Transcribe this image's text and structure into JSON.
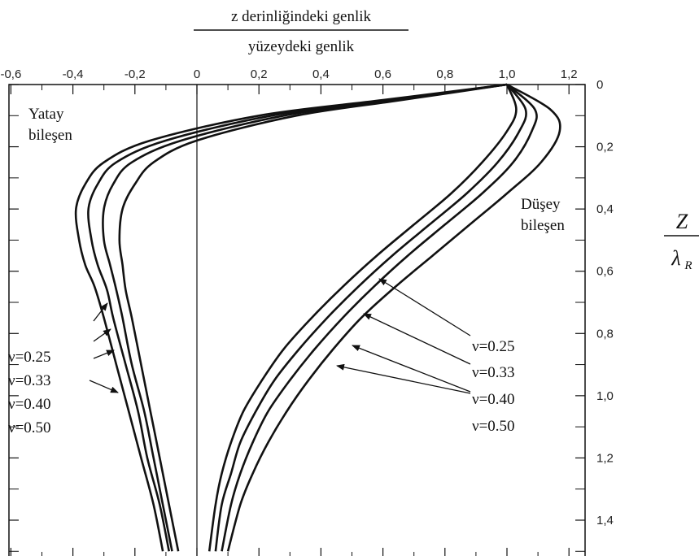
{
  "chart_data": {
    "type": "line",
    "title_numerator": "z derinliğindeki genlik",
    "title_denominator": "yüzeydeki genlik",
    "ylabel_numerator": "Z",
    "ylabel_denominator": "λ",
    "ylabel_subscript": "R",
    "x_tick_labels": [
      "-0,6",
      "-0,4",
      "-0,2",
      "0",
      "0,2",
      "0,4",
      "0,6",
      "0,8",
      "1,0",
      "1,2"
    ],
    "y_tick_labels": [
      "0",
      "0,2",
      "0,4",
      "0,6",
      "0,8",
      "1,0",
      "1,2",
      "1,4"
    ],
    "xlim": [
      -0.6,
      1.3
    ],
    "ylim": [
      0,
      1.5
    ],
    "x_ticks": [
      -0.6,
      -0.4,
      -0.2,
      0,
      0.2,
      0.4,
      0.6,
      0.8,
      1.0,
      1.2
    ],
    "y_ticks": [
      0,
      0.2,
      0.4,
      0.6,
      0.8,
      1.0,
      1.2,
      1.4
    ],
    "y_inverted": true,
    "grid": false,
    "annotations": {
      "horizontal_title": "Yatay",
      "horizontal_title2": "bileşen",
      "vertical_title": "Düşey",
      "vertical_title2": "bileşen",
      "nu_left": [
        "ν=0.25",
        "ν=0.33",
        "ν=0.40",
        "ν=0.50"
      ],
      "nu_right": [
        "ν=0.25",
        "ν=0.33",
        "ν=0.40",
        "ν=0.50"
      ]
    },
    "series": [
      {
        "component": "horizontal",
        "nu": "ν=0.25",
        "points": [
          [
            1.0,
            0
          ],
          [
            0.6,
            0.05
          ],
          [
            0.2,
            0.1
          ],
          [
            -0.15,
            0.18
          ],
          [
            -0.3,
            0.25
          ],
          [
            -0.36,
            0.32
          ],
          [
            -0.39,
            0.4
          ],
          [
            -0.38,
            0.5
          ],
          [
            -0.36,
            0.58
          ],
          [
            -0.33,
            0.65
          ],
          [
            -0.3,
            0.75
          ],
          [
            -0.26,
            0.9
          ],
          [
            -0.22,
            1.05
          ],
          [
            -0.18,
            1.2
          ],
          [
            -0.14,
            1.35
          ],
          [
            -0.11,
            1.5
          ]
        ]
      },
      {
        "component": "horizontal",
        "nu": "ν=0.33",
        "points": [
          [
            1.0,
            0
          ],
          [
            0.62,
            0.05
          ],
          [
            0.24,
            0.1
          ],
          [
            -0.1,
            0.18
          ],
          [
            -0.26,
            0.25
          ],
          [
            -0.32,
            0.32
          ],
          [
            -0.35,
            0.4
          ],
          [
            -0.34,
            0.5
          ],
          [
            -0.32,
            0.58
          ],
          [
            -0.29,
            0.66
          ],
          [
            -0.27,
            0.75
          ],
          [
            -0.23,
            0.9
          ],
          [
            -0.19,
            1.05
          ],
          [
            -0.16,
            1.2
          ],
          [
            -0.12,
            1.35
          ],
          [
            -0.09,
            1.5
          ]
        ]
      },
      {
        "component": "horizontal",
        "nu": "ν=0.40",
        "points": [
          [
            1.0,
            0
          ],
          [
            0.64,
            0.05
          ],
          [
            0.28,
            0.1
          ],
          [
            -0.05,
            0.18
          ],
          [
            -0.21,
            0.25
          ],
          [
            -0.27,
            0.32
          ],
          [
            -0.3,
            0.4
          ],
          [
            -0.3,
            0.5
          ],
          [
            -0.28,
            0.58
          ],
          [
            -0.26,
            0.66
          ],
          [
            -0.24,
            0.75
          ],
          [
            -0.21,
            0.9
          ],
          [
            -0.17,
            1.05
          ],
          [
            -0.14,
            1.2
          ],
          [
            -0.11,
            1.35
          ],
          [
            -0.08,
            1.5
          ]
        ]
      },
      {
        "component": "horizontal",
        "nu": "ν=0.50",
        "points": [
          [
            1.0,
            0
          ],
          [
            0.66,
            0.05
          ],
          [
            0.32,
            0.1
          ],
          [
            0.0,
            0.18
          ],
          [
            -0.14,
            0.25
          ],
          [
            -0.2,
            0.32
          ],
          [
            -0.24,
            0.4
          ],
          [
            -0.25,
            0.5
          ],
          [
            -0.24,
            0.58
          ],
          [
            -0.23,
            0.66
          ],
          [
            -0.21,
            0.75
          ],
          [
            -0.18,
            0.9
          ],
          [
            -0.15,
            1.05
          ],
          [
            -0.12,
            1.2
          ],
          [
            -0.09,
            1.35
          ],
          [
            -0.06,
            1.5
          ]
        ]
      },
      {
        "component": "vertical",
        "nu": "ν=0.25",
        "points": [
          [
            1.0,
            0
          ],
          [
            1.03,
            0.08
          ],
          [
            1.0,
            0.15
          ],
          [
            0.92,
            0.25
          ],
          [
            0.82,
            0.35
          ],
          [
            0.7,
            0.45
          ],
          [
            0.58,
            0.55
          ],
          [
            0.47,
            0.65
          ],
          [
            0.37,
            0.75
          ],
          [
            0.28,
            0.85
          ],
          [
            0.21,
            0.95
          ],
          [
            0.15,
            1.05
          ],
          [
            0.11,
            1.15
          ],
          [
            0.08,
            1.25
          ],
          [
            0.06,
            1.35
          ],
          [
            0.04,
            1.5
          ]
        ]
      },
      {
        "component": "vertical",
        "nu": "ν=0.33",
        "points": [
          [
            1.0,
            0
          ],
          [
            1.06,
            0.08
          ],
          [
            1.04,
            0.15
          ],
          [
            0.97,
            0.25
          ],
          [
            0.87,
            0.35
          ],
          [
            0.75,
            0.45
          ],
          [
            0.63,
            0.55
          ],
          [
            0.52,
            0.65
          ],
          [
            0.42,
            0.75
          ],
          [
            0.33,
            0.85
          ],
          [
            0.25,
            0.95
          ],
          [
            0.19,
            1.05
          ],
          [
            0.14,
            1.15
          ],
          [
            0.11,
            1.25
          ],
          [
            0.08,
            1.35
          ],
          [
            0.06,
            1.5
          ]
        ]
      },
      {
        "component": "vertical",
        "nu": "ν=0.40",
        "points": [
          [
            1.0,
            0
          ],
          [
            1.09,
            0.08
          ],
          [
            1.08,
            0.15
          ],
          [
            1.02,
            0.25
          ],
          [
            0.92,
            0.35
          ],
          [
            0.8,
            0.45
          ],
          [
            0.68,
            0.55
          ],
          [
            0.57,
            0.65
          ],
          [
            0.47,
            0.75
          ],
          [
            0.38,
            0.85
          ],
          [
            0.3,
            0.95
          ],
          [
            0.23,
            1.05
          ],
          [
            0.18,
            1.15
          ],
          [
            0.14,
            1.25
          ],
          [
            0.11,
            1.35
          ],
          [
            0.08,
            1.5
          ]
        ]
      },
      {
        "component": "vertical",
        "nu": "ν=0.50",
        "points": [
          [
            1.0,
            0
          ],
          [
            1.14,
            0.08
          ],
          [
            1.17,
            0.15
          ],
          [
            1.11,
            0.25
          ],
          [
            1.0,
            0.35
          ],
          [
            0.88,
            0.45
          ],
          [
            0.76,
            0.55
          ],
          [
            0.64,
            0.65
          ],
          [
            0.53,
            0.75
          ],
          [
            0.44,
            0.85
          ],
          [
            0.36,
            0.95
          ],
          [
            0.29,
            1.05
          ],
          [
            0.23,
            1.15
          ],
          [
            0.18,
            1.25
          ],
          [
            0.14,
            1.35
          ],
          [
            0.1,
            1.5
          ]
        ]
      }
    ]
  }
}
